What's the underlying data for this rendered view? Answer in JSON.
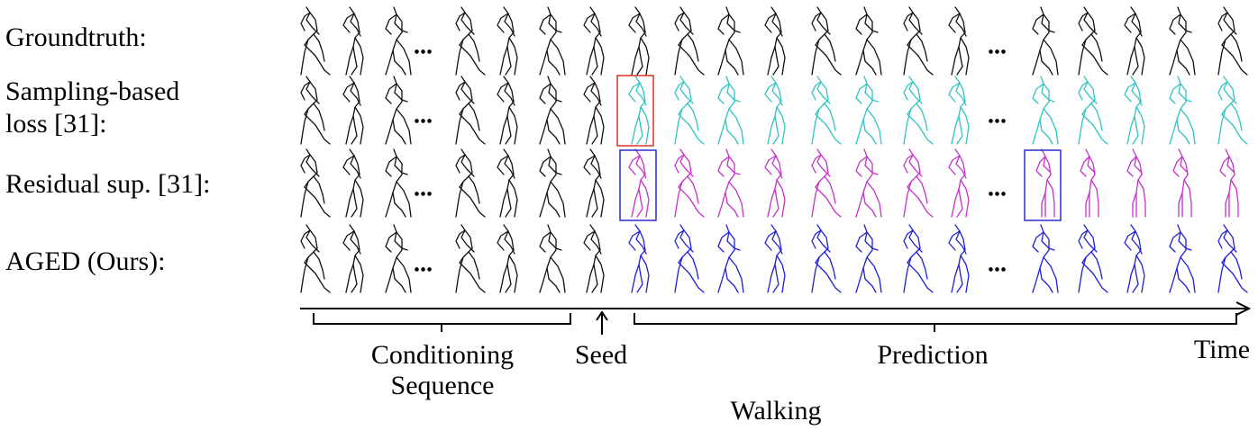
{
  "rows": [
    {
      "label_lines": [
        "Groundtruth:"
      ],
      "color": "#111111",
      "type": "gt"
    },
    {
      "label_lines": [
        "Sampling-based",
        "loss [31]:"
      ],
      "color": "#2ec4c4",
      "type": "sampling"
    },
    {
      "label_lines": [
        "Residual sup. [31]:"
      ],
      "color": "#c531c9",
      "type": "residual"
    },
    {
      "label_lines": [
        "AGED (Ours):"
      ],
      "color": "#1f1fd6",
      "type": "aged"
    }
  ],
  "ellipsis": "...",
  "conditioning_color": "#111111",
  "highlight": {
    "red_box_color": "#e0302a",
    "blue_box_color": "#2c2ccf"
  },
  "timeline": {
    "conditioning_label_lines": [
      "Conditioning",
      "Sequence"
    ],
    "seed_label": "Seed",
    "prediction_label": "Prediction",
    "time_label": "Time"
  },
  "caption": "Walking"
}
